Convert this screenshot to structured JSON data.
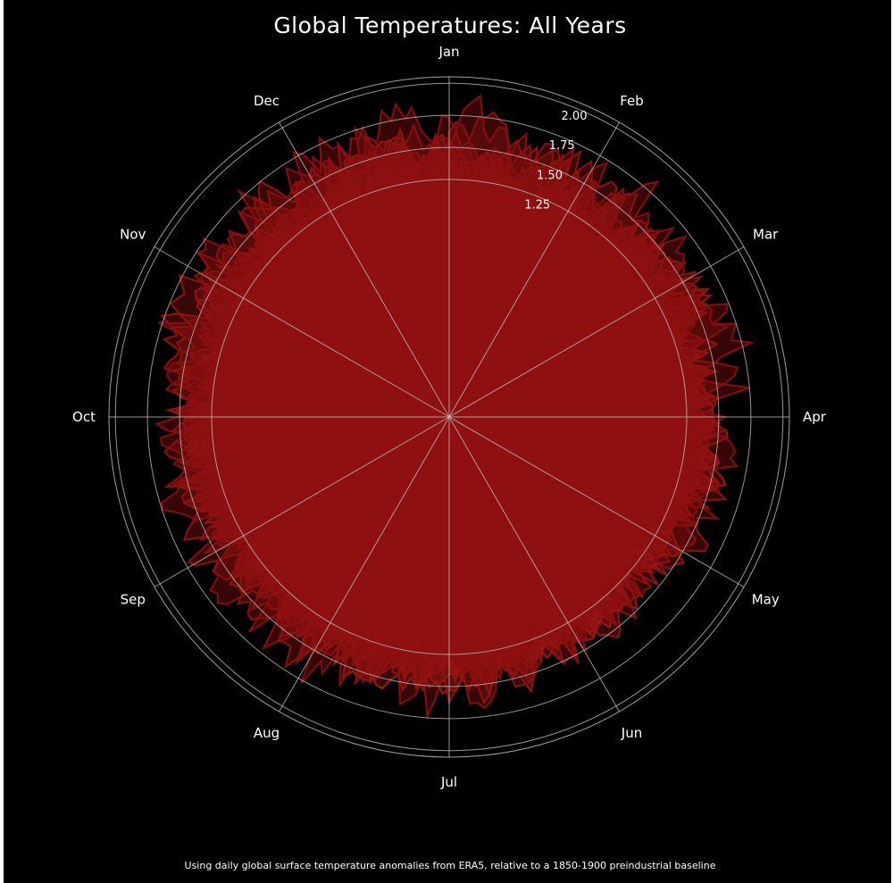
{
  "chart_data": {
    "type": "polar-line",
    "title": "Global Temperatures: All Years",
    "caption": "Using daily global surface temperature anomalies from ERA5, relative to a 1850-1900 preindustrial baseline",
    "angular_axis": {
      "labels": [
        "Jan",
        "Feb",
        "Mar",
        "Apr",
        "May",
        "Jun",
        "Jul",
        "Aug",
        "Sep",
        "Oct",
        "Nov",
        "Dec"
      ],
      "direction": "clockwise",
      "start": "top"
    },
    "radial_axis": {
      "ticks": [
        1.25,
        1.5,
        1.75,
        2.0
      ],
      "tick_labels": [
        "1.25",
        "1.50",
        "1.75",
        "2.00"
      ],
      "range": [
        -0.6,
        2.05
      ],
      "grid": true
    },
    "series_note": "One filled line per year of daily anomalies, colored cool (blue, earliest years) to warm (dark red, latest years)",
    "color_scale": {
      "cool": "#cfe0f5",
      "mid": "#f6b89a",
      "warm": "#e8392e",
      "hottest": "#8a0f10"
    },
    "background": "#000000",
    "grid_color": "#bbbbbb"
  }
}
